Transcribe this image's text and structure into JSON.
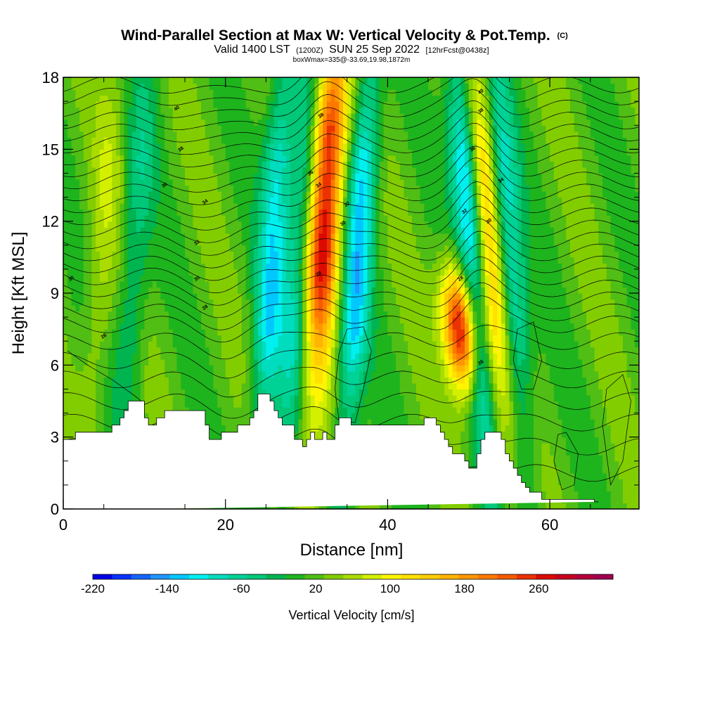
{
  "title": {
    "main": "Wind-Parallel Section at Max W: Vertical Velocity & Pot.Temp.",
    "main_suffix": "(C)",
    "sub_a": "Valid 1400 LST",
    "sub_b": "(1200Z)",
    "sub_c": "SUN 25 Sep 2022",
    "sub_d": "[12hrFcst@0438z]",
    "line3": "boxWmax=335@-33.69,19.98,1872m"
  },
  "chart_data": {
    "type": "heatmap",
    "title": "Wind-Parallel Section at Max W: Vertical Velocity & Pot.Temp.",
    "xlabel": "Distance [nm]",
    "ylabel": "Height [Kft MSL]",
    "xlim": [
      0,
      71
    ],
    "ylim": [
      0,
      18
    ],
    "xticks": [
      0,
      20,
      40,
      60
    ],
    "yticks": [
      0,
      3,
      6,
      9,
      12,
      15,
      18
    ],
    "colorbar": {
      "label": "Vertical Velocity [cm/s]",
      "tick_labels": [
        "-220",
        "-140",
        "-60",
        "20",
        "100",
        "180",
        "260"
      ],
      "tick_values": [
        -220,
        -140,
        -60,
        20,
        100,
        180,
        260
      ],
      "min": -220,
      "max": 340,
      "colors": [
        "#0000e6",
        "#0a32ff",
        "#1464ff",
        "#1e96ff",
        "#00c8ff",
        "#00f0f0",
        "#00dcbe",
        "#00d296",
        "#00c878",
        "#00b450",
        "#1eb41e",
        "#50be14",
        "#82cd00",
        "#aadc00",
        "#d2f000",
        "#fff500",
        "#ffe100",
        "#ffcd00",
        "#ffb400",
        "#ff9600",
        "#ff7800",
        "#f55a00",
        "#eb3200",
        "#dc0a00",
        "#c8001e",
        "#b4003c",
        "#a00050"
      ]
    },
    "w_features": [
      {
        "x": 31.0,
        "peak": 260,
        "sign": "updraft"
      },
      {
        "x": 28.5,
        "peak": -120,
        "sign": "downdraft"
      },
      {
        "x": 35.5,
        "peak": -140,
        "sign": "downdraft"
      },
      {
        "x": 49.5,
        "peak": 300,
        "sign": "updraft"
      },
      {
        "x": 51.5,
        "peak": -180,
        "sign": "downdraft"
      },
      {
        "x": 53.5,
        "peak": 150,
        "sign": "updraft"
      },
      {
        "x": 56.0,
        "peak": -110,
        "sign": "downdraft"
      },
      {
        "x": 25.0,
        "peak": -120,
        "sign": "downdraft"
      },
      {
        "x": 8.0,
        "peak": -60,
        "sign": "downdraft"
      },
      {
        "x": 4.0,
        "peak": 40,
        "sign": "updraft"
      }
    ],
    "terrain": {
      "x": [
        0,
        1.5,
        1.5,
        6,
        6,
        7,
        7,
        7.5,
        7.5,
        8,
        8,
        8.5,
        8.5,
        9,
        9,
        10,
        10,
        10.5,
        10.5,
        11,
        11,
        11.5,
        11.5,
        12.5,
        12.5,
        13,
        13,
        13.5,
        13.5,
        17.5,
        17.5,
        18,
        18,
        19.5,
        19.5,
        21.5,
        21.5,
        22.5,
        22.5,
        23,
        23,
        23.5,
        23.5,
        24,
        24,
        25.5,
        25.5,
        26,
        26,
        26.5,
        26.5,
        27,
        27,
        28.5,
        28.5,
        29,
        29,
        29.5,
        29.5,
        30,
        30,
        30.5,
        30.5,
        31,
        31,
        32,
        32,
        32.5,
        32.5,
        33.5,
        33.5,
        34,
        34,
        35.5,
        35.5,
        36.5,
        36.5,
        44.5,
        44.5,
        46,
        46,
        46.5,
        46.5,
        47,
        47,
        47.5,
        47.5,
        48,
        48,
        49.5,
        49.5,
        50,
        50,
        50.5,
        50.5,
        51,
        51,
        51.5,
        51.5,
        52,
        52,
        54,
        54,
        54.5,
        54.5,
        55,
        55,
        55.5,
        55.5,
        56,
        56,
        56.5,
        56.5,
        57,
        57,
        57.5,
        57.5,
        59,
        59,
        65.5,
        65.5,
        66,
        66,
        71
      ],
      "kft": [
        2.9,
        2.9,
        3.2,
        3.2,
        3.5,
        3.5,
        3.8,
        3.8,
        4.1,
        4.1,
        4.5,
        4.5,
        4.5,
        4.5,
        4.5,
        4.5,
        3.8,
        3.8,
        3.5,
        3.5,
        3.5,
        3.5,
        3.8,
        3.8,
        4.1,
        4.1,
        4.1,
        4.1,
        4.1,
        4.1,
        3.5,
        3.5,
        2.9,
        2.9,
        3.2,
        3.2,
        3.5,
        3.5,
        3.5,
        3.5,
        3.8,
        3.8,
        4.1,
        4.1,
        4.8,
        4.8,
        4.5,
        4.5,
        4.1,
        4.1,
        3.8,
        3.8,
        3.5,
        3.5,
        2.9,
        2.9,
        2.9,
        2.9,
        2.6,
        2.6,
        2.9,
        2.9,
        3.2,
        3.2,
        2.9,
        2.9,
        3.2,
        3.2,
        2.9,
        2.9,
        3.5,
        3.5,
        3.8,
        3.8,
        3.5,
        3.5,
        3.5,
        3.5,
        3.8,
        3.8,
        3.5,
        3.5,
        3.2,
        3.2,
        2.9,
        2.9,
        2.6,
        2.6,
        2.3,
        2.3,
        2.0,
        2.0,
        1.7,
        1.7,
        1.7,
        1.7,
        2.3,
        2.3,
        2.9,
        2.9,
        3.2,
        3.2,
        2.9,
        2.9,
        2.3,
        2.3,
        2.0,
        2.0,
        1.7,
        1.7,
        1.4,
        1.4,
        1.1,
        1.1,
        0.9,
        0.9,
        0.7,
        0.7,
        0.4,
        0.4,
        0.3,
        0.3,
        0.3
      ]
    },
    "theta_isentropes": {
      "base_kft": [
        1.5,
        2.6,
        3.6,
        4.5,
        5.4,
        6.2,
        7.0,
        7.7,
        8.2,
        8.7,
        9.2,
        9.7,
        10.2,
        10.7,
        11.2,
        11.7,
        12.2,
        12.7,
        13.2,
        13.7,
        14.2,
        14.7,
        15.2,
        15.7,
        16.2,
        16.7,
        17.2,
        17.7
      ]
    },
    "contour_labels": [
      {
        "x": 14.0,
        "y": 16.7,
        "text": "40"
      },
      {
        "x": 14.5,
        "y": 15.0,
        "text": "38"
      },
      {
        "x": 12.5,
        "y": 13.5,
        "text": "36"
      },
      {
        "x": 17.5,
        "y": 12.8,
        "text": "34"
      },
      {
        "x": 16.5,
        "y": 11.1,
        "text": "32"
      },
      {
        "x": 16.5,
        "y": 9.6,
        "text": "30"
      },
      {
        "x": 17.5,
        "y": 8.4,
        "text": "28"
      },
      {
        "x": 1.0,
        "y": 9.6,
        "text": "30"
      },
      {
        "x": 5.0,
        "y": 7.2,
        "text": "26"
      },
      {
        "x": 31.8,
        "y": 16.4,
        "text": "38"
      },
      {
        "x": 30.5,
        "y": 14.0,
        "text": "36"
      },
      {
        "x": 31.5,
        "y": 13.5,
        "text": "34"
      },
      {
        "x": 35.0,
        "y": 12.7,
        "text": "32"
      },
      {
        "x": 34.5,
        "y": 11.9,
        "text": "30"
      },
      {
        "x": 31.5,
        "y": 9.8,
        "text": "28"
      },
      {
        "x": 51.5,
        "y": 17.4,
        "text": "40"
      },
      {
        "x": 51.5,
        "y": 16.6,
        "text": "38"
      },
      {
        "x": 50.5,
        "y": 15.0,
        "text": "36"
      },
      {
        "x": 54.0,
        "y": 13.7,
        "text": "34"
      },
      {
        "x": 49.5,
        "y": 12.4,
        "text": "32"
      },
      {
        "x": 52.5,
        "y": 12.0,
        "text": "30"
      },
      {
        "x": 49.0,
        "y": 9.6,
        "text": "28"
      },
      {
        "x": 51.5,
        "y": 6.1,
        "text": "26"
      }
    ]
  }
}
